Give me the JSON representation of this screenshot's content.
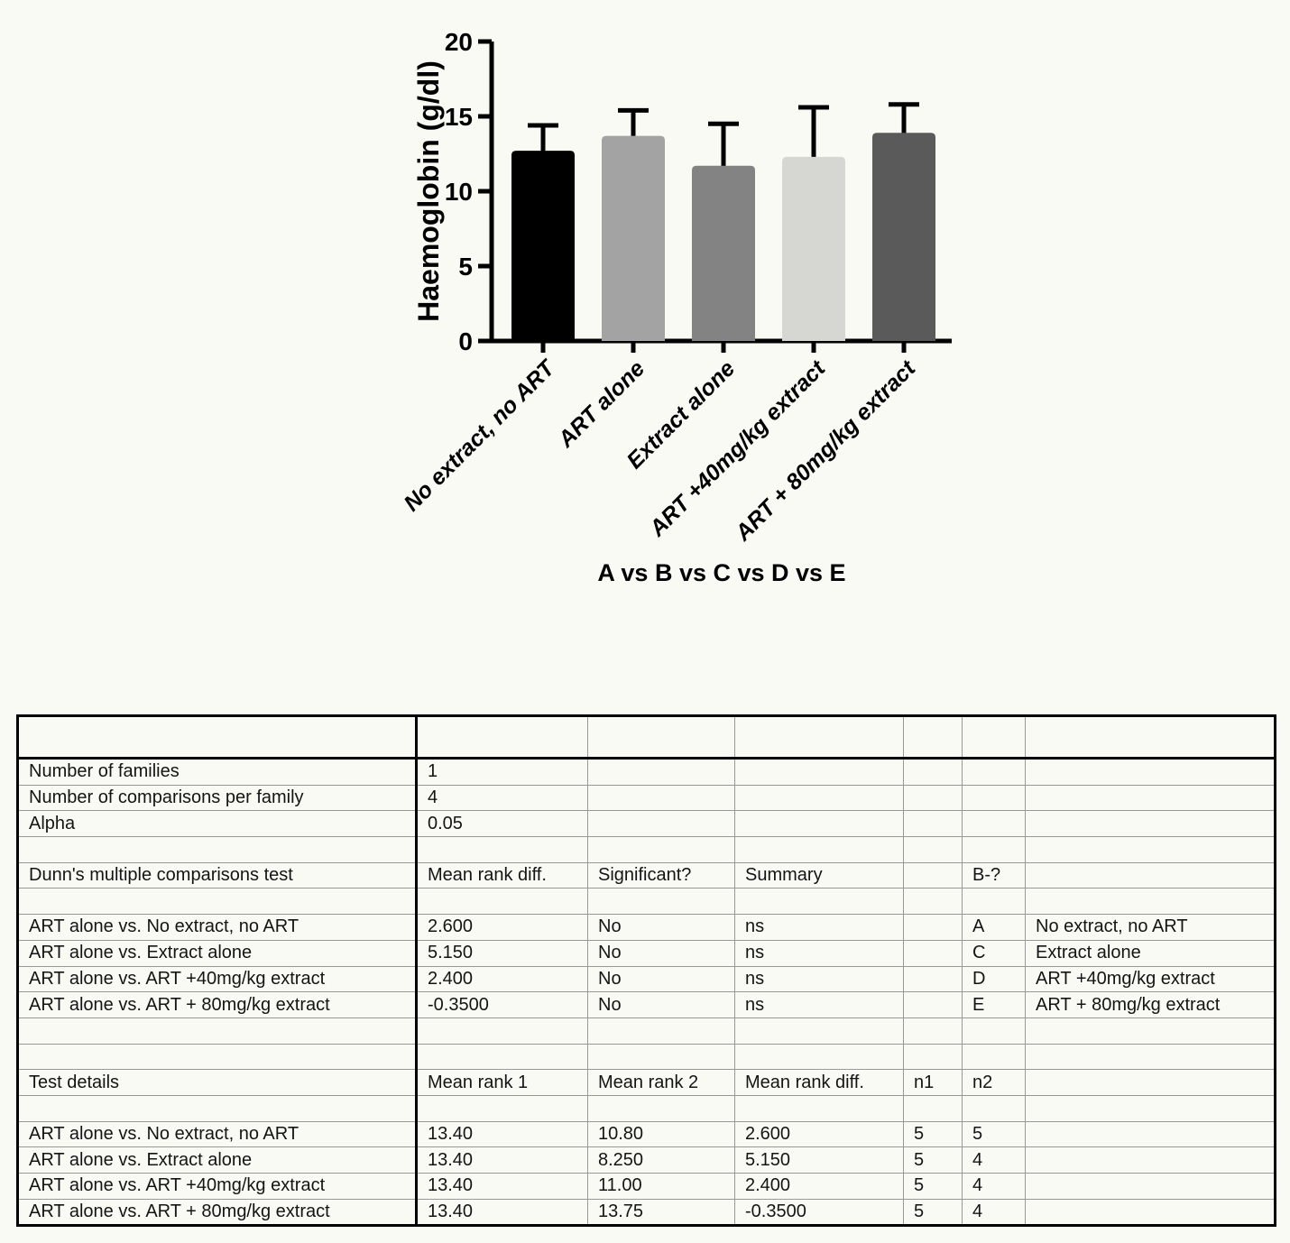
{
  "page": {
    "background": "#fafaf4"
  },
  "chart_data": {
    "type": "bar",
    "title": "",
    "ylabel": "Haemoglobin (g/dl)",
    "xlabel": "A vs B vs C vs D vs E",
    "ylim": [
      0,
      20
    ],
    "yticks": [
      0,
      5,
      10,
      15,
      20
    ],
    "grid": false,
    "legend": "none",
    "error_bar_style": "upper-sd-with-cap",
    "categories": [
      "No extract, no ART",
      "ART alone",
      "Extract alone",
      "ART +40mg/kg extract",
      "ART + 80mg/kg extract"
    ],
    "values": [
      12.7,
      13.7,
      11.7,
      12.3,
      13.9
    ],
    "errors_up": [
      1.7,
      1.7,
      2.8,
      3.3,
      1.9
    ],
    "bar_colors": [
      "#000000",
      "#a3a3a3",
      "#838383",
      "#d6d6d3",
      "#5a5a5a"
    ],
    "axis_color": "#000000"
  },
  "table": {
    "rows": [
      [
        "",
        "",
        "",
        "",
        "",
        "",
        ""
      ],
      [
        "Number of families",
        "1",
        "",
        "",
        "",
        "",
        ""
      ],
      [
        "Number of comparisons per family",
        "4",
        "",
        "",
        "",
        "",
        ""
      ],
      [
        "Alpha",
        "0.05",
        "",
        "",
        "",
        "",
        ""
      ],
      [
        "",
        "",
        "",
        "",
        "",
        "",
        ""
      ],
      [
        "Dunn's multiple comparisons test",
        "Mean rank diff.",
        "Significant?",
        "Summary",
        "",
        "B-?",
        ""
      ],
      [
        "",
        "",
        "",
        "",
        "",
        "",
        ""
      ],
      [
        "ART alone vs. No extract, no ART",
        "2.600",
        "No",
        "ns",
        "",
        "A",
        "No extract, no ART"
      ],
      [
        "ART alone vs. Extract alone",
        "5.150",
        "No",
        "ns",
        "",
        "C",
        "Extract alone"
      ],
      [
        "ART alone vs. ART +40mg/kg extract",
        "2.400",
        "No",
        "ns",
        "",
        "D",
        "ART +40mg/kg extract"
      ],
      [
        "ART alone vs. ART + 80mg/kg extract",
        "-0.3500",
        "No",
        "ns",
        "",
        "E",
        "ART + 80mg/kg extract"
      ],
      [
        "",
        "",
        "",
        "",
        "",
        "",
        ""
      ],
      [
        "",
        "",
        "",
        "",
        "",
        "",
        ""
      ],
      [
        "Test details",
        "Mean rank 1",
        "Mean rank 2",
        "Mean rank diff.",
        "n1",
        "n2",
        ""
      ],
      [
        "",
        "",
        "",
        "",
        "",
        "",
        ""
      ],
      [
        "ART alone vs. No extract, no ART",
        "13.40",
        "10.80",
        "2.600",
        "5",
        "5",
        ""
      ],
      [
        "ART alone vs. Extract alone",
        "13.40",
        "8.250",
        "5.150",
        "5",
        "4",
        ""
      ],
      [
        "ART alone vs. ART +40mg/kg extract",
        "13.40",
        "11.00",
        "2.400",
        "5",
        "4",
        ""
      ],
      [
        "ART alone vs. ART + 80mg/kg extract",
        "13.40",
        "13.75",
        "-0.3500",
        "5",
        "4",
        ""
      ]
    ]
  }
}
